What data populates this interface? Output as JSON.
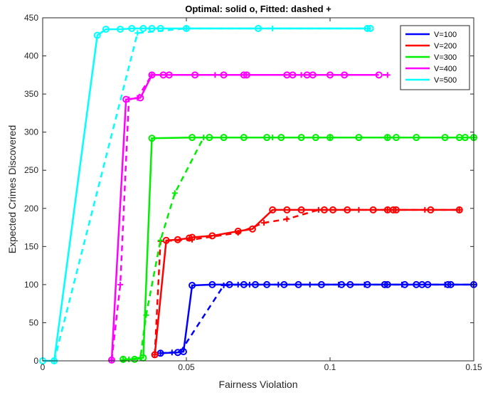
{
  "chart_data": {
    "type": "line",
    "title": "Optimal: solid o, Fitted: dashed +",
    "xlabel": "Fairness Violation",
    "ylabel": "Expected Crimes Discovered",
    "xlim": [
      0,
      0.15
    ],
    "ylim": [
      0,
      450
    ],
    "xticks": [
      0,
      0.05,
      0.1,
      0.15
    ],
    "xtick_labels": [
      "0",
      "0.05",
      "0.1",
      "0.15"
    ],
    "yticks": [
      0,
      50,
      100,
      150,
      200,
      250,
      300,
      350,
      400,
      450
    ],
    "ytick_labels": [
      "0",
      "50",
      "100",
      "150",
      "200",
      "250",
      "300",
      "350",
      "400",
      "450"
    ],
    "grid": false,
    "legend_position": "top-right",
    "series": [
      {
        "name": "V=100",
        "color": "#0000ff",
        "optimal": [
          [
            0.041,
            10
          ],
          [
            0.047,
            11
          ],
          [
            0.049,
            12
          ],
          [
            0.052,
            99
          ],
          [
            0.059,
            100
          ],
          [
            0.065,
            100
          ],
          [
            0.07,
            100
          ],
          [
            0.074,
            100
          ],
          [
            0.078,
            100
          ],
          [
            0.084,
            100
          ],
          [
            0.089,
            100
          ],
          [
            0.097,
            100
          ],
          [
            0.104,
            100
          ],
          [
            0.107,
            100
          ],
          [
            0.113,
            100
          ],
          [
            0.119,
            100
          ],
          [
            0.12,
            100
          ],
          [
            0.126,
            100
          ],
          [
            0.13,
            100
          ],
          [
            0.132,
            100
          ],
          [
            0.134,
            100
          ],
          [
            0.141,
            100
          ],
          [
            0.142,
            100
          ],
          [
            0.15,
            100
          ]
        ],
        "fitted": [
          [
            0.041,
            10
          ],
          [
            0.045,
            11
          ],
          [
            0.048,
            12
          ],
          [
            0.063,
            99
          ],
          [
            0.068,
            100
          ],
          [
            0.072,
            100
          ],
          [
            0.082,
            100
          ],
          [
            0.093,
            100
          ],
          [
            0.103,
            100
          ],
          [
            0.112,
            100
          ],
          [
            0.125,
            100
          ],
          [
            0.14,
            100
          ],
          [
            0.15,
            100
          ]
        ]
      },
      {
        "name": "V=200",
        "color": "#ff0000",
        "optimal": [
          [
            0.039,
            8
          ],
          [
            0.043,
            158
          ],
          [
            0.047,
            159
          ],
          [
            0.051,
            161
          ],
          [
            0.052,
            162
          ],
          [
            0.059,
            164
          ],
          [
            0.068,
            170
          ],
          [
            0.073,
            173
          ],
          [
            0.08,
            198
          ],
          [
            0.085,
            198
          ],
          [
            0.09,
            198
          ],
          [
            0.098,
            198
          ],
          [
            0.101,
            198
          ],
          [
            0.106,
            198
          ],
          [
            0.115,
            198
          ],
          [
            0.12,
            198
          ],
          [
            0.122,
            198
          ],
          [
            0.123,
            198
          ],
          [
            0.135,
            198
          ],
          [
            0.145,
            198
          ]
        ],
        "fitted": [
          [
            0.039,
            8
          ],
          [
            0.041,
            157
          ],
          [
            0.052,
            159
          ],
          [
            0.068,
            168
          ],
          [
            0.077,
            181
          ],
          [
            0.085,
            186
          ],
          [
            0.096,
            198
          ],
          [
            0.11,
            198
          ],
          [
            0.12,
            198
          ],
          [
            0.133,
            198
          ],
          [
            0.145,
            198
          ]
        ]
      },
      {
        "name": "V=300",
        "color": "#00ee00",
        "optimal": [
          [
            0.028,
            2
          ],
          [
            0.032,
            2
          ],
          [
            0.035,
            4
          ],
          [
            0.038,
            292
          ],
          [
            0.052,
            293
          ],
          [
            0.058,
            293
          ],
          [
            0.063,
            293
          ],
          [
            0.07,
            293
          ],
          [
            0.078,
            293
          ],
          [
            0.083,
            293
          ],
          [
            0.09,
            293
          ],
          [
            0.095,
            293
          ],
          [
            0.1,
            293
          ],
          [
            0.11,
            293
          ],
          [
            0.12,
            293
          ],
          [
            0.123,
            293
          ],
          [
            0.13,
            293
          ],
          [
            0.14,
            293
          ],
          [
            0.145,
            293
          ],
          [
            0.147,
            293
          ],
          [
            0.15,
            293
          ]
        ],
        "fitted": [
          [
            0.028,
            1
          ],
          [
            0.03,
            2
          ],
          [
            0.034,
            4
          ],
          [
            0.036,
            60
          ],
          [
            0.041,
            158
          ],
          [
            0.046,
            220
          ],
          [
            0.056,
            293
          ],
          [
            0.08,
            293
          ],
          [
            0.1,
            293
          ],
          [
            0.12,
            293
          ],
          [
            0.15,
            293
          ]
        ]
      },
      {
        "name": "V=400",
        "color": "#ff00ff",
        "optimal": [
          [
            0.024,
            1
          ],
          [
            0.029,
            343
          ],
          [
            0.034,
            345
          ],
          [
            0.038,
            375
          ],
          [
            0.042,
            375
          ],
          [
            0.044,
            375
          ],
          [
            0.053,
            375
          ],
          [
            0.063,
            375
          ],
          [
            0.07,
            375
          ],
          [
            0.071,
            375
          ],
          [
            0.085,
            375
          ],
          [
            0.087,
            375
          ],
          [
            0.092,
            375
          ],
          [
            0.094,
            375
          ],
          [
            0.1,
            375
          ],
          [
            0.105,
            375
          ],
          [
            0.117,
            375
          ]
        ],
        "fitted": [
          [
            0.024,
            1
          ],
          [
            0.027,
            100
          ],
          [
            0.03,
            343
          ],
          [
            0.033,
            345
          ],
          [
            0.038,
            375
          ],
          [
            0.06,
            375
          ],
          [
            0.09,
            375
          ],
          [
            0.12,
            375
          ]
        ]
      },
      {
        "name": "V=500",
        "color": "#00ffff",
        "optimal": [
          [
            0.0,
            0
          ],
          [
            0.004,
            0
          ],
          [
            0.019,
            427
          ],
          [
            0.022,
            435
          ],
          [
            0.027,
            435
          ],
          [
            0.031,
            436
          ],
          [
            0.035,
            436
          ],
          [
            0.038,
            436
          ],
          [
            0.041,
            436
          ],
          [
            0.05,
            436
          ],
          [
            0.075,
            436
          ],
          [
            0.113,
            436
          ],
          [
            0.114,
            436
          ]
        ],
        "fitted": [
          [
            0.004,
            0
          ],
          [
            0.033,
            430
          ],
          [
            0.05,
            436
          ],
          [
            0.08,
            436
          ],
          [
            0.113,
            436
          ]
        ]
      }
    ]
  }
}
